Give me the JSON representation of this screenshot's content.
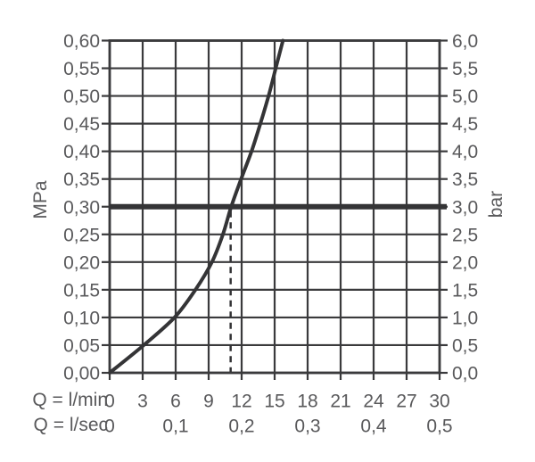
{
  "chart_data": {
    "type": "line",
    "title": "",
    "grid": true,
    "legend": false,
    "colors": {
      "grid_line": "#3a3a3c",
      "curve": "#343436",
      "reference_line": "#343436",
      "guide_line": "#343436",
      "label": "#59595b",
      "background": "#ffffff"
    },
    "x_axis": {
      "range": [
        0,
        30
      ],
      "rows": [
        {
          "label": "Q = l/min",
          "tick_values": [
            0,
            3,
            6,
            9,
            12,
            15,
            18,
            21,
            24,
            27,
            30
          ],
          "tick_labels": [
            "0",
            "3",
            "6",
            "9",
            "12",
            "15",
            "18",
            "21",
            "24",
            "27",
            "30"
          ]
        },
        {
          "label": "Q = l/sec",
          "tick_values": [
            0,
            6,
            12,
            18,
            24,
            30
          ],
          "tick_labels": [
            "0",
            "0,1",
            "0,2",
            "0,3",
            "0,4",
            "0,5"
          ]
        }
      ]
    },
    "y_axis_left": {
      "label": "MPa",
      "range": [
        0,
        0.6
      ],
      "tick_values": [
        0,
        0.05,
        0.1,
        0.15,
        0.2,
        0.25,
        0.3,
        0.35,
        0.4,
        0.45,
        0.5,
        0.55,
        0.6
      ],
      "tick_labels": [
        "0,00",
        "0,05",
        "0,10",
        "0,15",
        "0,20",
        "0,25",
        "0,30",
        "0,35",
        "0,40",
        "0,45",
        "0,50",
        "0,55",
        "0,60"
      ]
    },
    "y_axis_right": {
      "label": "bar",
      "range": [
        0,
        6
      ],
      "tick_labels": [
        "0,0",
        "0,5",
        "1,0",
        "1,5",
        "2,0",
        "2,5",
        "3,0",
        "3,5",
        "4,0",
        "4,5",
        "5,0",
        "5,5",
        "6,0"
      ]
    },
    "series": [
      {
        "name": "flow-pressure-curve",
        "units": [
          "l/min",
          "MPa"
        ],
        "points": [
          [
            0,
            0.0
          ],
          [
            3.1,
            0.05
          ],
          [
            5.9,
            0.1
          ],
          [
            7.8,
            0.15
          ],
          [
            9.3,
            0.2
          ],
          [
            10.3,
            0.25
          ],
          [
            11.05,
            0.3
          ],
          [
            11.95,
            0.35
          ],
          [
            12.9,
            0.4
          ],
          [
            13.7,
            0.45
          ],
          [
            14.45,
            0.5
          ],
          [
            15.1,
            0.55
          ],
          [
            15.75,
            0.6
          ]
        ]
      }
    ],
    "reference_line": {
      "mpa": 0.3,
      "bar": 3.0
    },
    "guide_line": {
      "l_min": 11,
      "from_mpa": 0,
      "to_mpa": 0.3,
      "style": "dashed"
    }
  }
}
